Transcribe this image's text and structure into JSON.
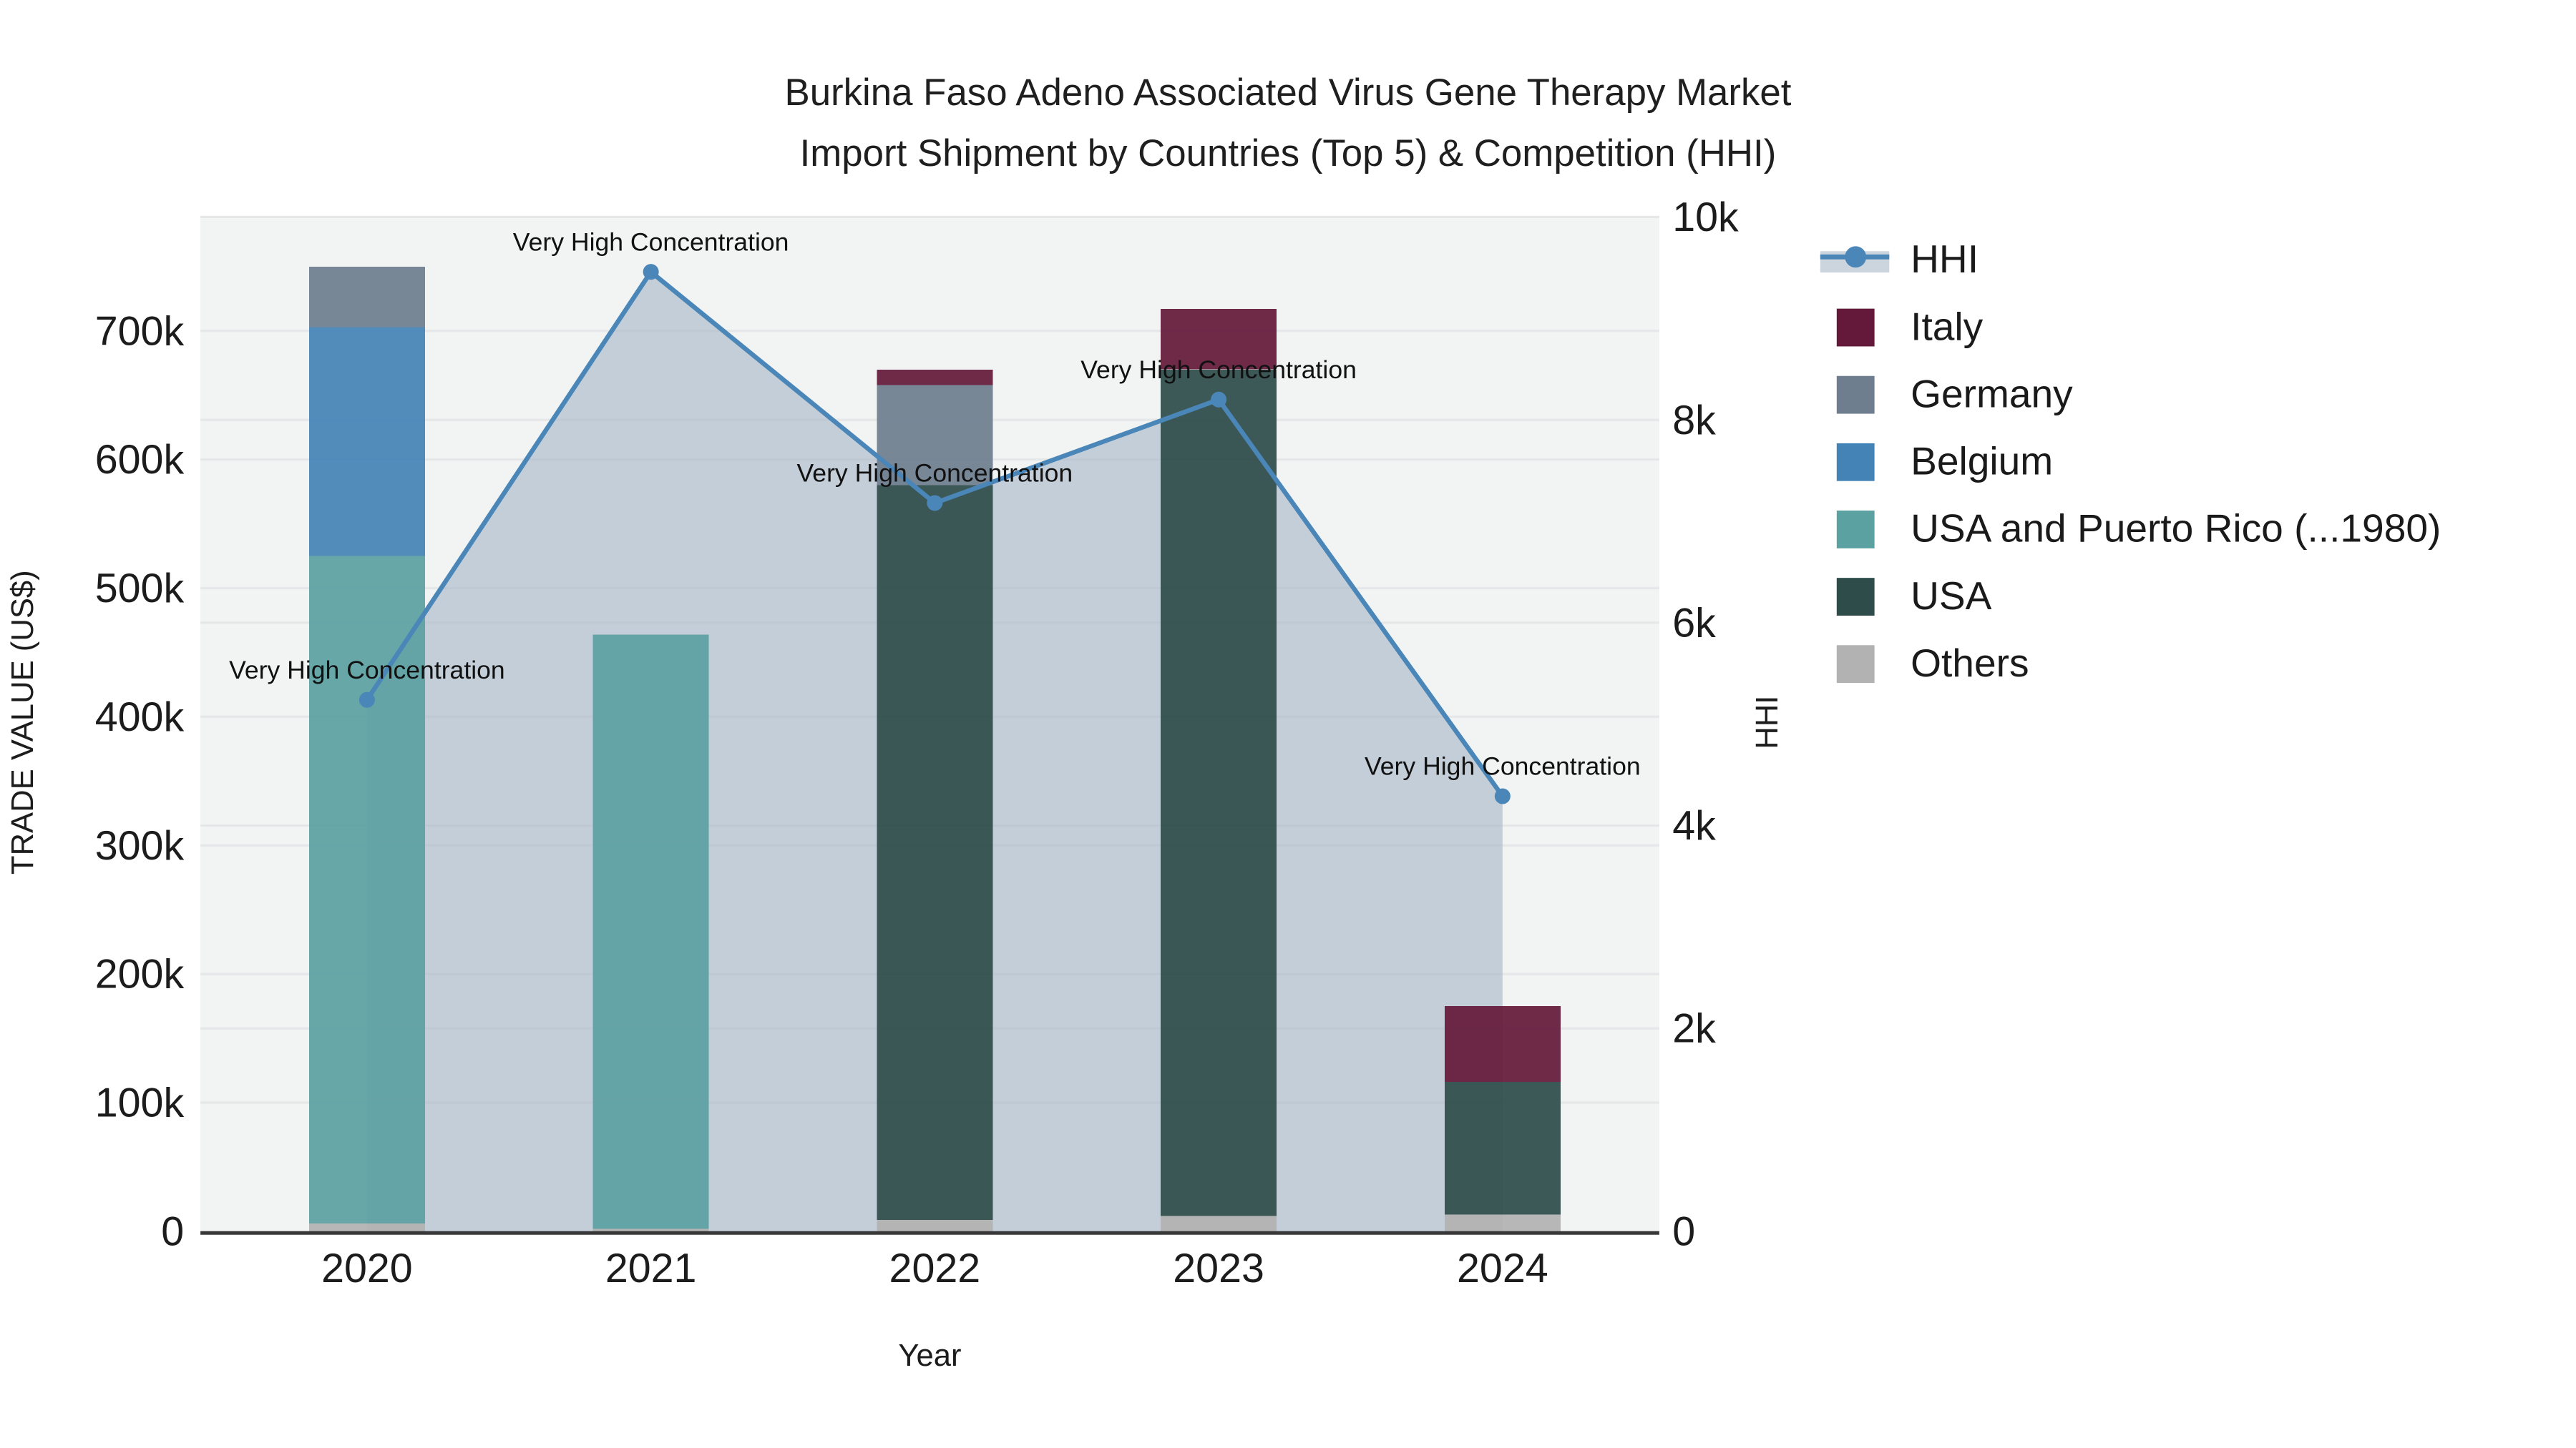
{
  "title": {
    "line1": "Burkina Faso Adeno Associated Virus Gene Therapy Market",
    "line2": "Import Shipment by Countries (Top 5) & Competition (HHI)"
  },
  "chart_data": {
    "type": "bar+line",
    "categories": [
      "2020",
      "2021",
      "2022",
      "2023",
      "2024"
    ],
    "bar_series": [
      {
        "name": "Others",
        "color": "#b2b2b2",
        "values": [
          6000,
          2000,
          9000,
          12000,
          13000
        ]
      },
      {
        "name": "USA",
        "color": "#2e4c4a",
        "values": [
          0,
          0,
          571000,
          658000,
          103000
        ]
      },
      {
        "name": "USA and Puerto Rico (...1980)",
        "color": "#5ba1a2",
        "values": [
          519000,
          462000,
          0,
          0,
          0
        ]
      },
      {
        "name": "Belgium",
        "color": "#4383b6",
        "values": [
          178000,
          0,
          0,
          0,
          0
        ]
      },
      {
        "name": "Germany",
        "color": "#6e7e8e",
        "values": [
          47000,
          0,
          78000,
          0,
          0
        ]
      },
      {
        "name": "Italy",
        "color": "#64193a",
        "values": [
          0,
          0,
          12000,
          47000,
          59000
        ]
      }
    ],
    "bar_totals": [
      750000,
      464000,
      670000,
      717000,
      175000
    ],
    "line_series": {
      "name": "HHI",
      "color": "#4a86b8",
      "area_color": "#a8b6c6",
      "area_opacity": 0.62,
      "values": [
        5240,
        9460,
        7180,
        8200,
        4290
      ]
    },
    "annotations": [
      "Very High Concentration",
      "Very High Concentration",
      "Very High Concentration",
      "Very High Concentration",
      "Very High Concentration"
    ],
    "left_axis": {
      "title": "TRADE VALUE (US$)",
      "range": [
        0,
        787000
      ],
      "ticks": [
        {
          "v": 0,
          "label": "0"
        },
        {
          "v": 100000,
          "label": "100k"
        },
        {
          "v": 200000,
          "label": "200k"
        },
        {
          "v": 300000,
          "label": "300k"
        },
        {
          "v": 400000,
          "label": "400k"
        },
        {
          "v": 500000,
          "label": "500k"
        },
        {
          "v": 600000,
          "label": "600k"
        },
        {
          "v": 700000,
          "label": "700k"
        }
      ]
    },
    "right_axis": {
      "title": "HHI",
      "range": [
        0,
        10000
      ],
      "ticks": [
        {
          "v": 0,
          "label": "0"
        },
        {
          "v": 2000,
          "label": "2k"
        },
        {
          "v": 4000,
          "label": "4k"
        },
        {
          "v": 6000,
          "label": "6k"
        },
        {
          "v": 8000,
          "label": "8k"
        },
        {
          "v": 10000,
          "label": "10k"
        }
      ]
    },
    "x_axis": {
      "title": "Year"
    },
    "legend": [
      {
        "label": "HHI",
        "type": "line",
        "color": "#4a86b8"
      },
      {
        "label": "Italy",
        "type": "square",
        "color": "#64193a"
      },
      {
        "label": "Germany",
        "type": "square",
        "color": "#6e7e8e"
      },
      {
        "label": "Belgium",
        "type": "square",
        "color": "#4383b6"
      },
      {
        "label": "USA and Puerto Rico (...1980)",
        "type": "square",
        "color": "#5ba1a2"
      },
      {
        "label": "USA",
        "type": "square",
        "color": "#2e4c4a"
      },
      {
        "label": "Others",
        "type": "square",
        "color": "#b2b2b2"
      }
    ],
    "colors": {
      "plot_bg": "#f2f3f3",
      "grid": "#e5e7e8",
      "axis_line": "#383838",
      "text": "#1c1c1c",
      "annotation_text": "#111111"
    }
  }
}
